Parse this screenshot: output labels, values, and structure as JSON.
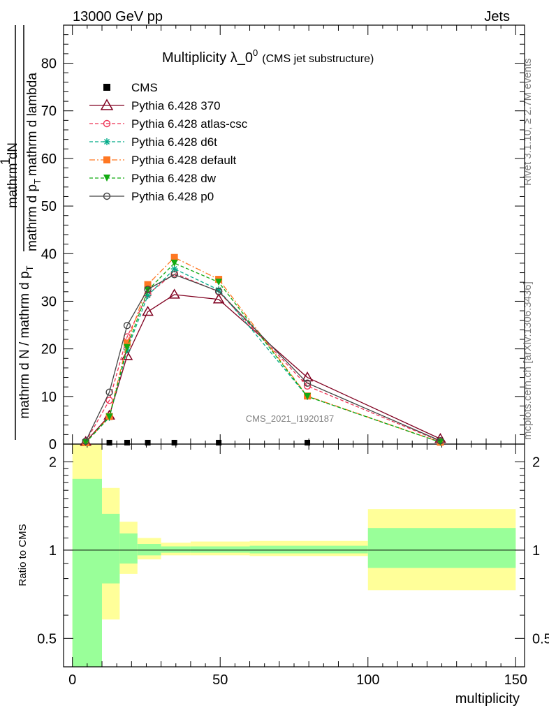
{
  "header": {
    "left": "13000 GeV pp",
    "right": "Jets"
  },
  "side": {
    "rivet": "Rivet 3.1.10, ≥ 2.7M events",
    "mcplots": "mcplots.cern.ch [arXiv:1306.3436]"
  },
  "chart_data": {
    "type": "line",
    "title_main": "Multiplicity λ_0",
    "title_sup": "0",
    "title_sub": "(CMS jet substructure)",
    "watermark": "CMS_2021_I1920187",
    "ylabel_top": "mathrm dN",
    "ylabel_den": "mathrm d p",
    "ylabel_den_sub": "T",
    "ylabel_den2": "mathrm d lambda",
    "ylabel_frac_num": "1",
    "ylabel_frac_den": "mathrm d N / mathrm d p",
    "ylabel_frac_den_sub": "T",
    "xlabel": "multiplicity",
    "ratio_ylabel": "Ratio to CMS",
    "xlim": [
      -3,
      153
    ],
    "ylim": [
      0,
      88
    ],
    "x_ticks": [
      "0",
      "50",
      "100",
      "150"
    ],
    "y_ticks": [
      "0",
      "10",
      "20",
      "30",
      "40",
      "50",
      "60",
      "70",
      "80"
    ],
    "ratio_ticks": [
      "0.5",
      "1",
      "2"
    ],
    "ratio_ylim": [
      0.4,
      2.3
    ],
    "ratio_scale": "log",
    "legend_position": "top-left",
    "x": [
      4.5,
      12.5,
      18.5,
      25.5,
      34.5,
      49.5,
      79.5,
      124.5
    ],
    "series": [
      {
        "name": "CMS",
        "color": "#000000",
        "marker": "square",
        "dash": "none",
        "values": [
          0.3,
          0.3,
          0.3,
          0.3,
          0.3,
          0.3,
          0.3,
          0.3
        ]
      },
      {
        "name": "Pythia 6.428 370",
        "color": "#800020",
        "marker": "triangle-open",
        "dash": "solid",
        "values": [
          0.5,
          6.0,
          18.5,
          27.8,
          31.4,
          30.4,
          14.0,
          1.1
        ]
      },
      {
        "name": "Pythia 6.428 atlas-csc",
        "color": "#ee3355",
        "marker": "circle-open",
        "dash": "dashed",
        "values": [
          0.5,
          9.2,
          22.5,
          31.5,
          35.9,
          32.0,
          12.2,
          0.6
        ]
      },
      {
        "name": "Pythia 6.428 d6t",
        "color": "#00aa88",
        "marker": "star",
        "dash": "dashed",
        "values": [
          0.3,
          5.6,
          19.8,
          31.2,
          36.8,
          32.4,
          10.0,
          0.4
        ]
      },
      {
        "name": "Pythia 6.428 default",
        "color": "#ff7722",
        "marker": "square-filled",
        "dash": "dashdot",
        "values": [
          0.3,
          5.8,
          21.2,
          33.5,
          39.2,
          34.6,
          10.1,
          0.4
        ]
      },
      {
        "name": "Pythia 6.428 dw",
        "color": "#11aa11",
        "marker": "triangle-down-filled",
        "dash": "dashed",
        "values": [
          0.3,
          5.7,
          20.3,
          32.3,
          38.0,
          34.0,
          10.0,
          0.4
        ]
      },
      {
        "name": "Pythia 6.428 p0",
        "color": "#444444",
        "marker": "circle-open",
        "dash": "solid",
        "values": [
          0.6,
          10.9,
          24.9,
          32.5,
          35.6,
          32.1,
          12.8,
          0.7
        ]
      }
    ],
    "ratio_bands": [
      {
        "x0": 0,
        "x1": 10,
        "yellow": [
          0.4,
          2.3
        ],
        "green": [
          0.4,
          1.75
        ]
      },
      {
        "x0": 10,
        "x1": 16,
        "yellow": [
          0.58,
          1.63
        ],
        "green": [
          0.77,
          1.33
        ]
      },
      {
        "x0": 16,
        "x1": 22,
        "yellow": [
          0.83,
          1.25
        ],
        "green": [
          0.9,
          1.14
        ]
      },
      {
        "x0": 22,
        "x1": 30,
        "yellow": [
          0.93,
          1.1
        ],
        "green": [
          0.96,
          1.05
        ]
      },
      {
        "x0": 30,
        "x1": 40,
        "yellow": [
          0.96,
          1.06
        ],
        "green": [
          0.98,
          1.03
        ]
      },
      {
        "x0": 40,
        "x1": 60,
        "yellow": [
          0.96,
          1.07
        ],
        "green": [
          0.98,
          1.03
        ]
      },
      {
        "x0": 60,
        "x1": 100,
        "yellow": [
          0.955,
          1.075
        ],
        "green": [
          0.975,
          1.035
        ]
      },
      {
        "x0": 100,
        "x1": 150,
        "yellow": [
          0.73,
          1.38
        ],
        "green": [
          0.87,
          1.19
        ]
      }
    ]
  }
}
